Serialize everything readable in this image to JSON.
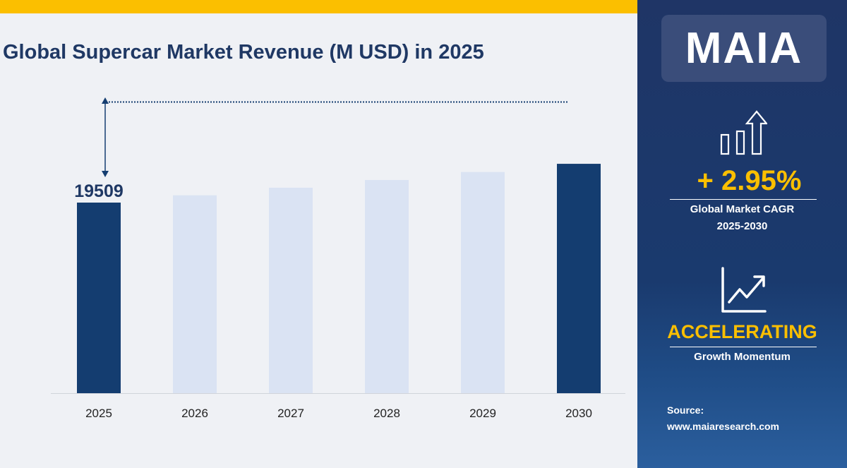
{
  "chart_data": {
    "type": "bar",
    "title": "Global Supercar Market Revenue (M USD) in 2025",
    "categories": [
      "2025",
      "2026",
      "2027",
      "2028",
      "2029",
      "2030"
    ],
    "values": [
      19509,
      20085,
      20677,
      21287,
      21915,
      22561
    ],
    "data_labels": {
      "2025": "19509"
    },
    "highlighted": [
      "2025",
      "2030"
    ],
    "grid": false,
    "colors": {
      "highlight": "#143d70",
      "normal": "#dae3f3",
      "title": "#1f3864",
      "accent": "#fbbf00"
    }
  },
  "panel": {
    "logo": "MAIA",
    "cagr_value": "+ 2.95%",
    "cagr_label": "Global Market CAGR",
    "cagr_period": "2025-2030",
    "momentum_value": "ACCELERATING",
    "momentum_label": "Growth Momentum",
    "source_label": "Source:",
    "source_url": "www.maiaresearch.com",
    "icons": [
      "bar-growth-arrow-icon",
      "line-chart-up-icon"
    ]
  }
}
